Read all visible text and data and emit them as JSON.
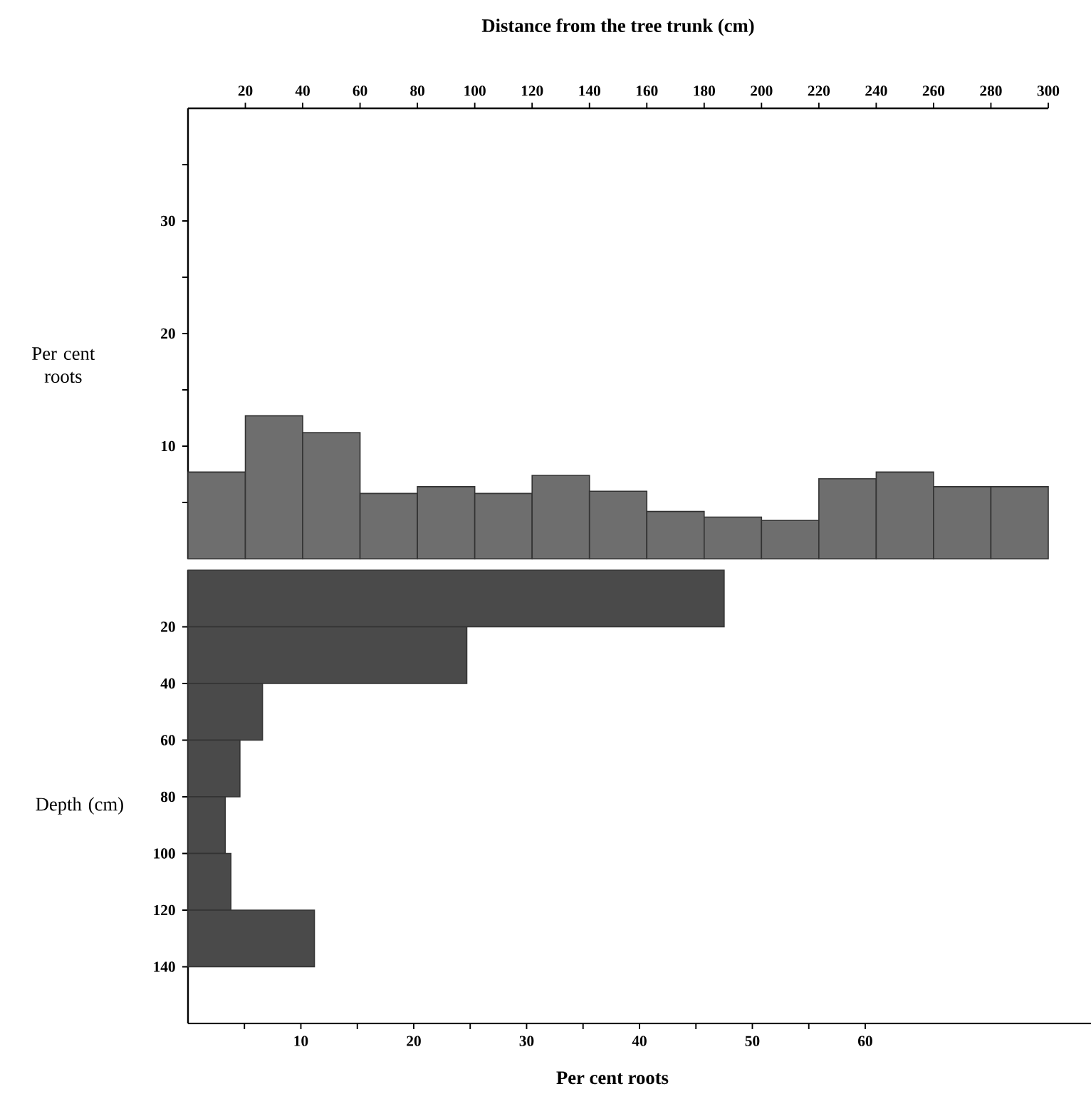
{
  "chart_data": [
    {
      "type": "histogram",
      "xlabel": "Distance from the tree trunk (cm)",
      "ylabel": "Per cent roots",
      "color": "#6e6e6e",
      "bins": [
        0,
        20,
        40,
        60,
        80,
        100,
        120,
        140,
        160,
        180,
        200,
        220,
        240,
        260,
        280,
        300
      ],
      "values": [
        7.7,
        12.7,
        11.2,
        5.8,
        6.4,
        5.8,
        7.4,
        6.0,
        4.2,
        3.7,
        3.4,
        7.1,
        7.7,
        6.4,
        6.4
      ],
      "xlim": [
        0,
        300
      ],
      "ylim": [
        0,
        40
      ],
      "xticks": [
        20,
        40,
        60,
        80,
        100,
        120,
        140,
        160,
        180,
        200,
        220,
        240,
        260,
        280,
        300
      ],
      "yticks": [
        {
          "value": 5,
          "label": null
        },
        10,
        {
          "value": 15,
          "label": null
        },
        20,
        {
          "value": 25,
          "label": null
        },
        30,
        {
          "value": 35,
          "label": null
        }
      ]
    },
    {
      "type": "histogram",
      "orientation": "horizontal",
      "xlabel": "Per cent roots",
      "ylabel": "Depth (cm)",
      "color": "#4a4a4a",
      "bins": [
        0,
        20,
        40,
        60,
        80,
        100,
        120,
        140
      ],
      "values": [
        47.5,
        24.7,
        6.6,
        4.6,
        3.3,
        3.8,
        11.2
      ],
      "xlim": [
        0,
        80
      ],
      "ylim": [
        160,
        0
      ],
      "xticks": [
        {
          "value": 5,
          "label": null
        },
        10,
        {
          "value": 15,
          "label": null
        },
        20,
        {
          "value": 25,
          "label": null
        },
        30,
        {
          "value": 35,
          "label": null
        },
        40,
        {
          "value": 45,
          "label": null
        },
        50,
        {
          "value": 55,
          "label": null
        },
        60
      ],
      "yticks": [
        20,
        40,
        60,
        80,
        100,
        120,
        140
      ]
    }
  ]
}
